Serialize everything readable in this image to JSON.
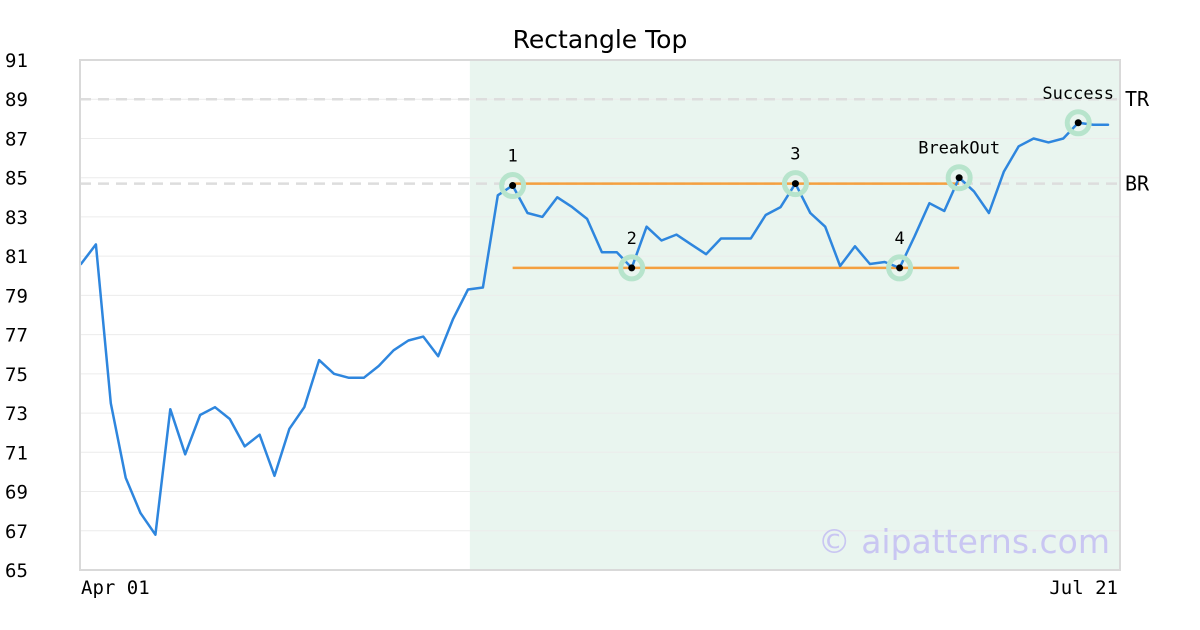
{
  "chart_data": {
    "type": "line",
    "title": "Rectangle Top",
    "ylim": [
      65,
      91
    ],
    "y_ticks": [
      "65",
      "67",
      "69",
      "71",
      "73",
      "75",
      "77",
      "79",
      "81",
      "83",
      "85",
      "87",
      "89",
      "91"
    ],
    "x_ticks": [
      "Apr 01",
      "Jul 21"
    ],
    "grid": true,
    "series": [
      {
        "color": "#2e86de",
        "values": [
          80.6,
          81.6,
          73.5,
          69.7,
          67.9,
          66.8,
          73.2,
          70.9,
          72.9,
          73.3,
          72.7,
          71.3,
          71.9,
          69.8,
          72.2,
          73.3,
          75.7,
          75.0,
          74.8,
          74.8,
          75.4,
          76.2,
          76.7,
          76.9,
          75.9,
          77.8,
          79.3,
          79.4,
          84.1,
          84.6,
          83.2,
          83.0,
          84.0,
          83.5,
          82.9,
          81.2,
          81.2,
          80.4,
          82.5,
          81.8,
          82.1,
          81.6,
          81.1,
          81.9,
          81.9,
          81.9,
          83.1,
          83.5,
          84.7,
          83.2,
          82.5,
          80.5,
          81.5,
          80.6,
          80.7,
          80.4,
          82.0,
          83.7,
          83.3,
          85.0,
          84.3,
          83.2,
          85.3,
          86.6,
          87.0,
          86.8,
          87.0,
          87.8,
          87.7,
          87.7
        ]
      }
    ],
    "highlight_region": {
      "start_index": 27,
      "end_index": 69,
      "color": "#e9f5ef"
    },
    "levels": [
      {
        "label": "TR",
        "value": 89.0,
        "color": "#dddddd"
      },
      {
        "label": "BR",
        "value": 84.7,
        "color": "#dddddd"
      }
    ],
    "pattern_lines": [
      {
        "from_index": 29,
        "to_index": 59,
        "value": 84.7,
        "color": "#f4a040"
      },
      {
        "from_index": 29,
        "to_index": 59,
        "value": 80.4,
        "color": "#f4a040"
      }
    ],
    "annotations": [
      {
        "label": "1",
        "index": 29,
        "value": 84.6
      },
      {
        "label": "2",
        "index": 37,
        "value": 80.4
      },
      {
        "label": "3",
        "index": 48,
        "value": 84.7
      },
      {
        "label": "4",
        "index": 55,
        "value": 80.4
      },
      {
        "label": "BreakOut",
        "index": 59,
        "value": 85.0
      },
      {
        "label": "Success",
        "index": 67,
        "value": 87.8
      }
    ],
    "watermark": "© aipatterns.com"
  }
}
